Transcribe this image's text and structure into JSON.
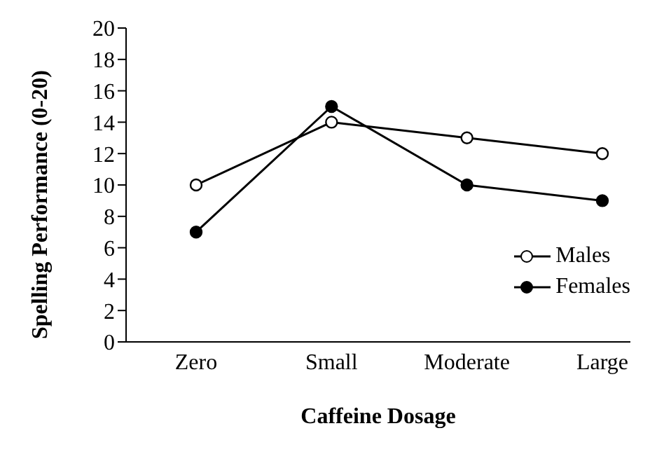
{
  "chart_data": {
    "type": "line",
    "xlabel": "Caffeine Dosage",
    "ylabel": "Spelling Performance (0-20)",
    "categories": [
      "Zero",
      "Small",
      "Moderate",
      "Large"
    ],
    "series": [
      {
        "name": "Males",
        "color": "#000000",
        "values": [
          10,
          14,
          13,
          12
        ]
      },
      {
        "name": "Females",
        "color": "#000000",
        "values": [
          7,
          15,
          10,
          9
        ]
      }
    ],
    "ylim": [
      0,
      20
    ],
    "yticks": [
      0,
      2,
      4,
      6,
      8,
      10,
      12,
      14,
      16,
      18,
      20
    ],
    "grid": false,
    "legend": "bottom right",
    "marker": "circle",
    "line_style": "solid"
  }
}
